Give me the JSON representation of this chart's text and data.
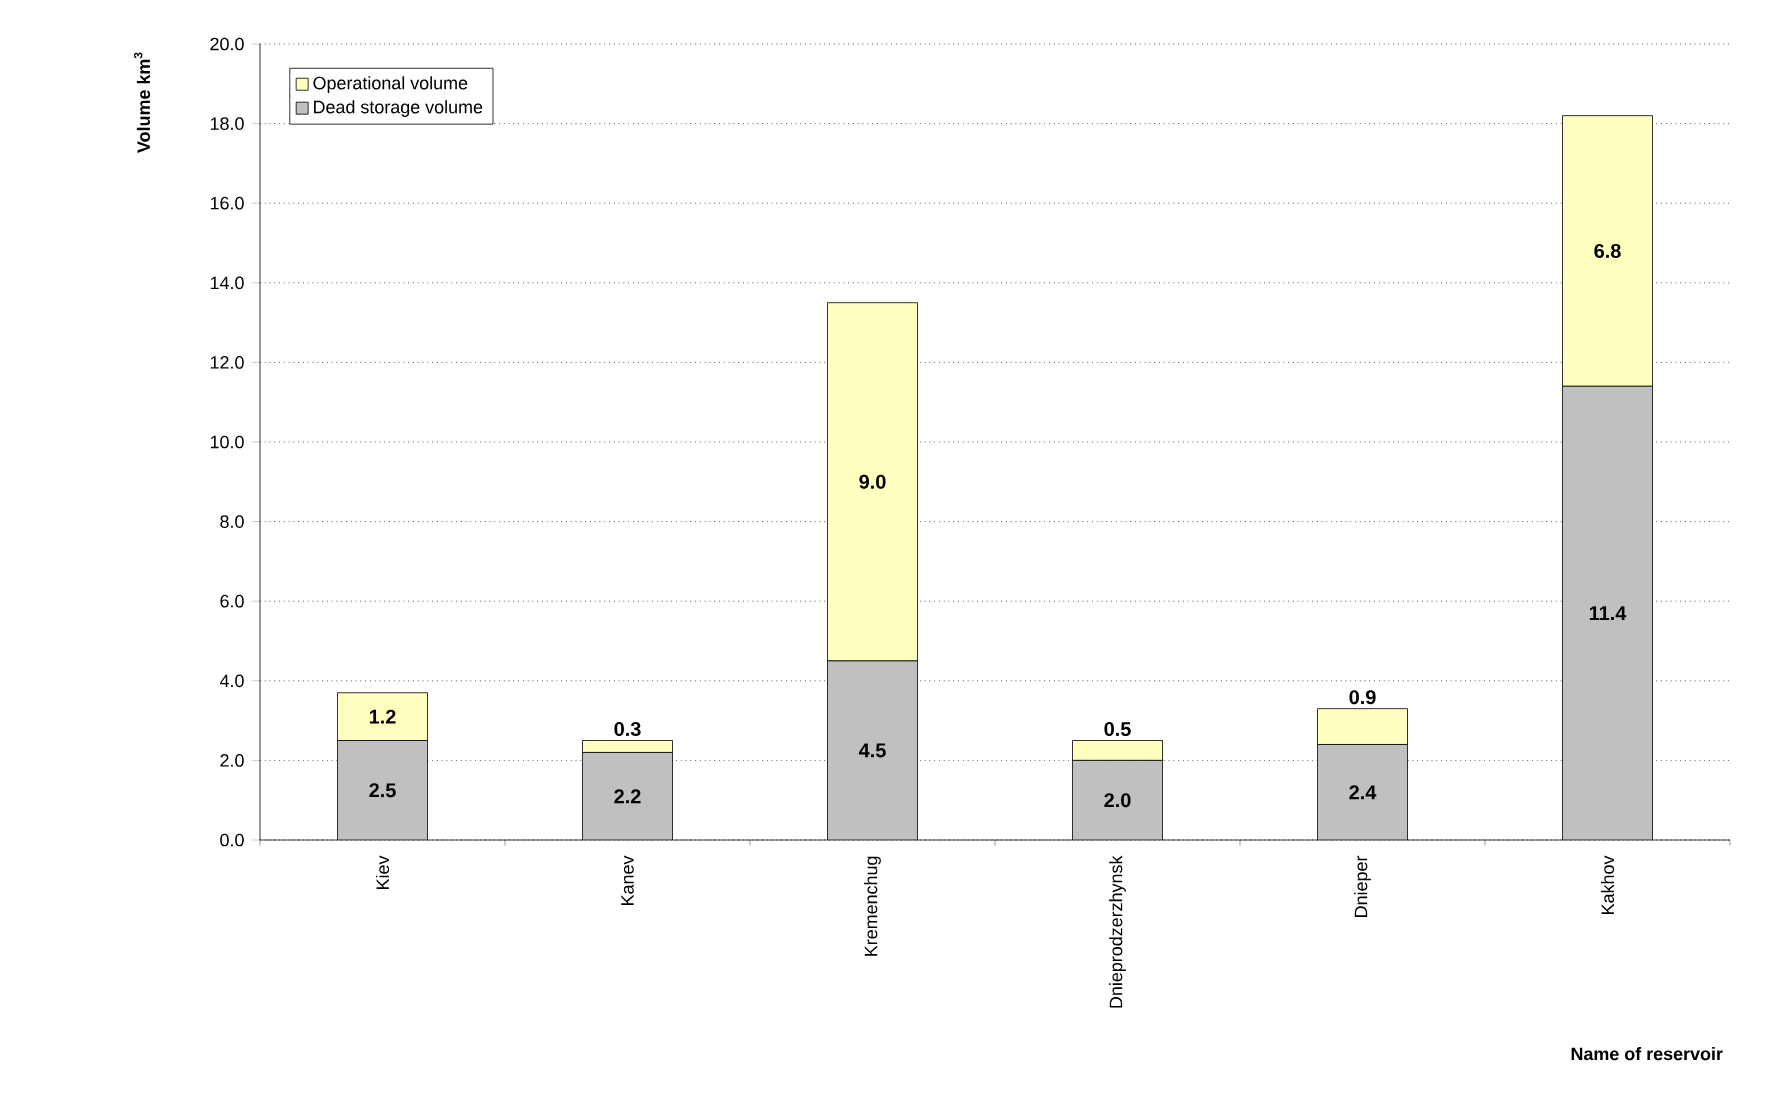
{
  "chart_data": {
    "type": "bar",
    "stacked": true,
    "xlabel": "Name of reservoir",
    "ylabel": "Volume km$^{3}$",
    "categories": [
      "Kiev",
      "Kanev",
      "Kremenchug",
      "Dnieprodzerzhynsk",
      "Dnieper",
      "Kakhov"
    ],
    "series": [
      {
        "name": "Dead storage volume",
        "color": "#c0c0c0",
        "values": [
          2.5,
          2.2,
          4.5,
          2.0,
          2.4,
          11.4
        ],
        "value_labels": [
          "2.5",
          "2.2",
          "4.5",
          "2.0",
          "2.4",
          "11.4"
        ]
      },
      {
        "name": "Operational volume",
        "color": "#ffffc0",
        "values": [
          1.2,
          0.3,
          9.0,
          0.5,
          0.9,
          6.8
        ],
        "value_labels": [
          "1.2",
          "0.3",
          "9.0",
          "0.5",
          "0.9",
          "6.8"
        ]
      }
    ],
    "ylim": [
      0,
      20
    ],
    "yticks": [
      {
        "value": 0,
        "label": "0.0"
      },
      {
        "value": 2,
        "label": "2.0"
      },
      {
        "value": 4,
        "label": "4.0"
      },
      {
        "value": 6,
        "label": "6.0"
      },
      {
        "value": 8,
        "label": "8.0"
      },
      {
        "value": 10,
        "label": "10.0"
      },
      {
        "value": 12,
        "label": "12.0"
      },
      {
        "value": 14,
        "label": "14.0"
      },
      {
        "value": 16,
        "label": "16.0"
      },
      {
        "value": 18,
        "label": "18.0"
      },
      {
        "value": 20,
        "label": "20.0"
      }
    ],
    "grid": "y",
    "legend": "top left"
  }
}
